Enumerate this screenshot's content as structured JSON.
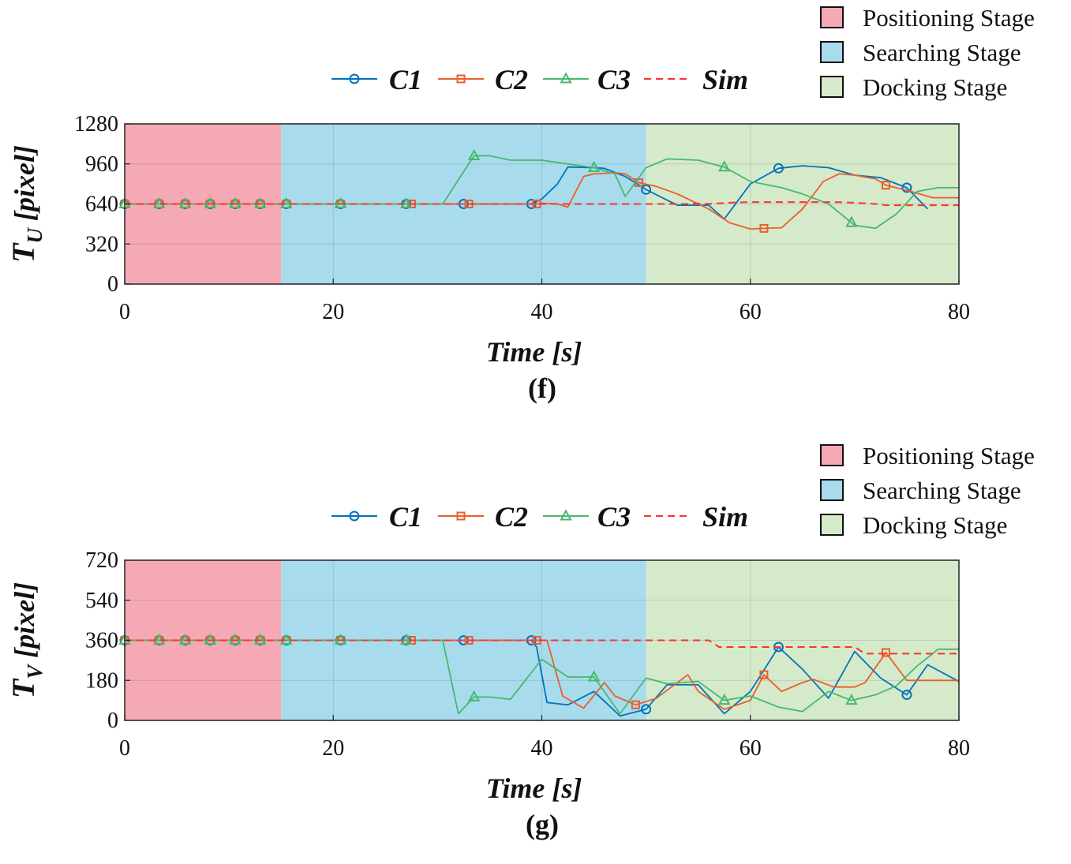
{
  "colors": {
    "c1": "#0072BD",
    "c2": "#EA5E2B",
    "c3": "#47B86D",
    "sim": "#FF3030",
    "positioning": "#F5A9B4",
    "searching": "#A8DCEC",
    "docking": "#D5EACA"
  },
  "chart_data": [
    {
      "type": "line",
      "panel_label": "(f)",
      "ylabel_main": "T",
      "ylabel_sub": "U",
      "ylabel_unit": "[pixel]",
      "xlabel": "Time [s]",
      "xlim": [
        0,
        80
      ],
      "ylim": [
        0,
        1280
      ],
      "xticks": [
        0,
        20,
        40,
        60,
        80
      ],
      "xtick_labels": [
        "0",
        "20",
        "40",
        "60",
        "80"
      ],
      "yticks": [
        0,
        320,
        640,
        960,
        1280
      ],
      "ytick_labels": [
        "0",
        "320",
        "640",
        "960",
        "1280"
      ],
      "legend": [
        "C1",
        "C2",
        "C3",
        "Sim"
      ],
      "stage_legend": [
        "Positioning Stage",
        "Searching Stage",
        "Docking Stage"
      ],
      "stages": [
        {
          "name": "Positioning Stage",
          "from": 0,
          "to": 15
        },
        {
          "name": "Searching Stage",
          "from": 15,
          "to": 50
        },
        {
          "name": "Docking Stage",
          "from": 50,
          "to": 80
        }
      ],
      "series": [
        {
          "name": "C1",
          "x": [
            0,
            3.3,
            5.8,
            8.2,
            10.6,
            13,
            15.5,
            20.7,
            27,
            32.5,
            39,
            40,
            41.5,
            42.5,
            45,
            46,
            48,
            50,
            53,
            56,
            57.5,
            60,
            62.7,
            65,
            67.5,
            70,
            72.5,
            75,
            77
          ],
          "y": [
            640,
            640,
            640,
            640,
            640,
            640,
            640,
            640,
            640,
            640,
            640,
            680,
            800,
            935,
            930,
            925,
            860,
            755,
            630,
            630,
            520,
            800,
            925,
            945,
            930,
            870,
            850,
            770,
            600
          ],
          "markers": [
            0,
            3.3,
            5.8,
            8.2,
            10.6,
            13,
            15.5,
            20.7,
            27,
            32.5,
            39,
            50,
            62.7,
            75
          ]
        },
        {
          "name": "C2",
          "x": [
            0,
            3.3,
            5.8,
            8.2,
            10.6,
            13,
            15.5,
            20.7,
            27.5,
            33,
            39.5,
            40,
            41.5,
            42.5,
            44,
            45,
            47,
            48,
            49.3,
            51,
            53,
            56,
            58,
            60,
            61.3,
            63,
            65,
            67,
            68.5,
            70,
            72,
            73,
            75,
            77.5,
            80
          ],
          "y": [
            640,
            640,
            640,
            640,
            640,
            640,
            640,
            640,
            640,
            640,
            640,
            645,
            640,
            615,
            860,
            880,
            890,
            880,
            810,
            780,
            720,
            600,
            490,
            440,
            445,
            450,
            600,
            820,
            880,
            870,
            840,
            790,
            750,
            690,
            690
          ],
          "markers": [
            0,
            3.3,
            5.8,
            8.2,
            10.6,
            13,
            15.5,
            20.7,
            27.5,
            33,
            39.5,
            49.3,
            61.3,
            73
          ]
        },
        {
          "name": "C3",
          "x": [
            0,
            3.3,
            5.8,
            8.2,
            10.6,
            13,
            15.5,
            20.7,
            27,
            30.5,
            33.5,
            35,
            37,
            40,
            42.5,
            45,
            47,
            48,
            50,
            52,
            55,
            57.5,
            60,
            63,
            65,
            67.5,
            70,
            72,
            74,
            76,
            78,
            80
          ],
          "y": [
            640,
            640,
            640,
            640,
            640,
            640,
            640,
            640,
            640,
            640,
            1025,
            1025,
            990,
            990,
            960,
            930,
            880,
            700,
            930,
            1000,
            990,
            935,
            820,
            770,
            720,
            640,
            470,
            445,
            560,
            740,
            770,
            770
          ],
          "markers": [
            0,
            3.3,
            5.8,
            8.2,
            10.6,
            13,
            15.5,
            20.7,
            27,
            33.5,
            45,
            57.5,
            69.7
          ]
        },
        {
          "name": "Sim",
          "x": [
            0,
            30,
            50,
            52,
            54,
            55,
            56,
            58,
            60,
            63,
            65,
            68,
            70,
            72,
            73,
            75,
            80
          ],
          "y": [
            640,
            640,
            640,
            640,
            640,
            645,
            640,
            650,
            655,
            655,
            655,
            655,
            650,
            640,
            630,
            630,
            630
          ],
          "markers": []
        }
      ]
    },
    {
      "type": "line",
      "panel_label": "(g)",
      "ylabel_main": "T",
      "ylabel_sub": "V",
      "ylabel_unit": "[pixel]",
      "xlabel": "Time [s]",
      "xlim": [
        0,
        80
      ],
      "ylim": [
        0,
        720
      ],
      "xticks": [
        0,
        20,
        40,
        60,
        80
      ],
      "xtick_labels": [
        "0",
        "20",
        "40",
        "60",
        "80"
      ],
      "yticks": [
        0,
        180,
        360,
        540,
        720
      ],
      "ytick_labels": [
        "0",
        "180",
        "360",
        "540",
        "720"
      ],
      "legend": [
        "C1",
        "C2",
        "C3",
        "Sim"
      ],
      "stage_legend": [
        "Positioning Stage",
        "Searching Stage",
        "Docking Stage"
      ],
      "stages": [
        {
          "name": "Positioning Stage",
          "from": 0,
          "to": 15
        },
        {
          "name": "Searching Stage",
          "from": 15,
          "to": 50
        },
        {
          "name": "Docking Stage",
          "from": 50,
          "to": 80
        }
      ],
      "series": [
        {
          "name": "C1",
          "x": [
            0,
            3.3,
            5.8,
            8.2,
            10.6,
            13,
            15.5,
            20.7,
            27,
            32.5,
            39,
            39.5,
            40.5,
            42.5,
            45,
            47.5,
            50,
            52,
            55,
            57.5,
            60,
            62.7,
            65,
            67.5,
            70,
            72.5,
            75,
            77,
            80
          ],
          "y": [
            360,
            360,
            360,
            360,
            360,
            360,
            360,
            360,
            360,
            360,
            360,
            330,
            80,
            70,
            130,
            20,
            50,
            160,
            160,
            30,
            130,
            330,
            230,
            100,
            310,
            190,
            115,
            250,
            175
          ],
          "markers": [
            0,
            3.3,
            5.8,
            8.2,
            10.6,
            13,
            15.5,
            20.7,
            27,
            32.5,
            39,
            50,
            62.7,
            75
          ]
        },
        {
          "name": "C2",
          "x": [
            0,
            3.3,
            5.8,
            8.2,
            10.6,
            13,
            15.5,
            20.7,
            27.5,
            33,
            39.5,
            40.5,
            42,
            44,
            46,
            47,
            49,
            51,
            54,
            55,
            57.5,
            60,
            61.3,
            63,
            65,
            66,
            68,
            70,
            71,
            73,
            75,
            77,
            80
          ],
          "y": [
            360,
            360,
            360,
            360,
            360,
            360,
            360,
            360,
            360,
            360,
            360,
            360,
            110,
            55,
            170,
            110,
            70,
            100,
            205,
            130,
            50,
            90,
            205,
            130,
            170,
            185,
            150,
            150,
            170,
            305,
            180,
            180,
            180
          ],
          "markers": [
            0,
            3.3,
            5.8,
            8.2,
            10.6,
            13,
            15.5,
            20.7,
            27.5,
            33,
            39.5,
            49,
            61.3,
            73
          ]
        },
        {
          "name": "C3",
          "x": [
            0,
            3.3,
            5.8,
            8.2,
            10.6,
            13,
            15.5,
            20.7,
            27,
            30.5,
            32,
            33.5,
            35,
            37,
            40,
            42.5,
            45,
            47.5,
            50,
            52,
            55,
            57.5,
            60,
            62.7,
            65,
            67.5,
            69.7,
            72,
            74,
            76,
            78,
            80
          ],
          "y": [
            360,
            360,
            360,
            360,
            360,
            360,
            360,
            360,
            360,
            360,
            30,
            105,
            105,
            95,
            275,
            195,
            195,
            30,
            190,
            165,
            175,
            90,
            110,
            60,
            40,
            130,
            90,
            115,
            155,
            245,
            320,
            320
          ],
          "markers": [
            0,
            3.3,
            5.8,
            8.2,
            10.6,
            13,
            15.5,
            20.7,
            27,
            33.5,
            45,
            57.5,
            69.7
          ]
        },
        {
          "name": "Sim",
          "x": [
            0,
            56,
            57,
            60,
            65,
            70,
            71,
            75,
            80
          ],
          "y": [
            360,
            360,
            330,
            330,
            330,
            330,
            300,
            300,
            300
          ],
          "markers": []
        }
      ]
    }
  ]
}
